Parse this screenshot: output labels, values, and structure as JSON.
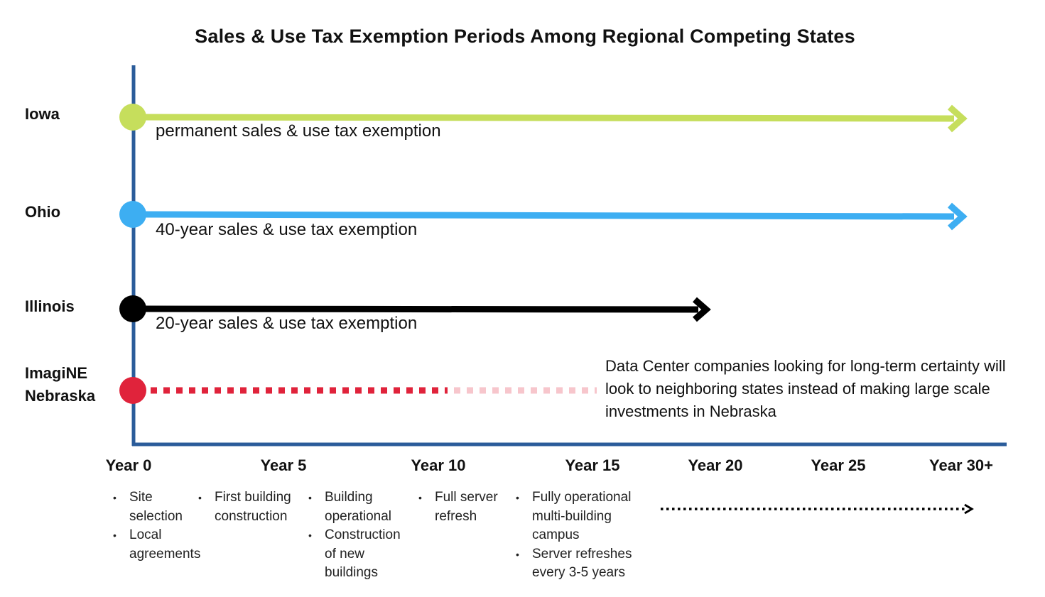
{
  "title": "Sales & Use Tax Exemption Periods Among Regional Competing States",
  "colors": {
    "axis": "#2b5c9a",
    "iowa": "#c6de5c",
    "ohio": "#3daef2",
    "illinois": "#000000",
    "nebraska": "#e0233b",
    "nebraska_faded": "#f7c6cc"
  },
  "states": [
    {
      "name": "Iowa",
      "label": "permanent sales & use tax exemption",
      "years": "permanent",
      "color_key": "iowa"
    },
    {
      "name": "Ohio",
      "label": "40-year sales & use tax exemption",
      "years": 40,
      "color_key": "ohio"
    },
    {
      "name": "Illinois",
      "label": "20-year sales & use tax exemption",
      "years": 20,
      "color_key": "illinois"
    },
    {
      "name_line1": "ImagiNE",
      "name_line2": "Nebraska",
      "years": 10,
      "faded_to_years": 15,
      "color_key": "nebraska"
    }
  ],
  "nebraska_note": "Data Center companies looking for long-term certainty will look to neighboring states instead of making large scale investments in Nebraska",
  "years": [
    "Year 0",
    "Year 5",
    "Year 10",
    "Year 15",
    "Year 20",
    "Year 25",
    "Year 30+"
  ],
  "milestones": [
    [
      "Site selection",
      "Local agreements"
    ],
    [
      "First building construction"
    ],
    [
      "Building operational",
      "Construction of new buildings"
    ],
    [
      "Full server refresh"
    ],
    [
      "Fully operational multi-building campus",
      "Server refreshes every 3-5 years"
    ]
  ],
  "arrow_icons": [
    "arrow-right-icon",
    "dotted-arrow-right-icon"
  ]
}
